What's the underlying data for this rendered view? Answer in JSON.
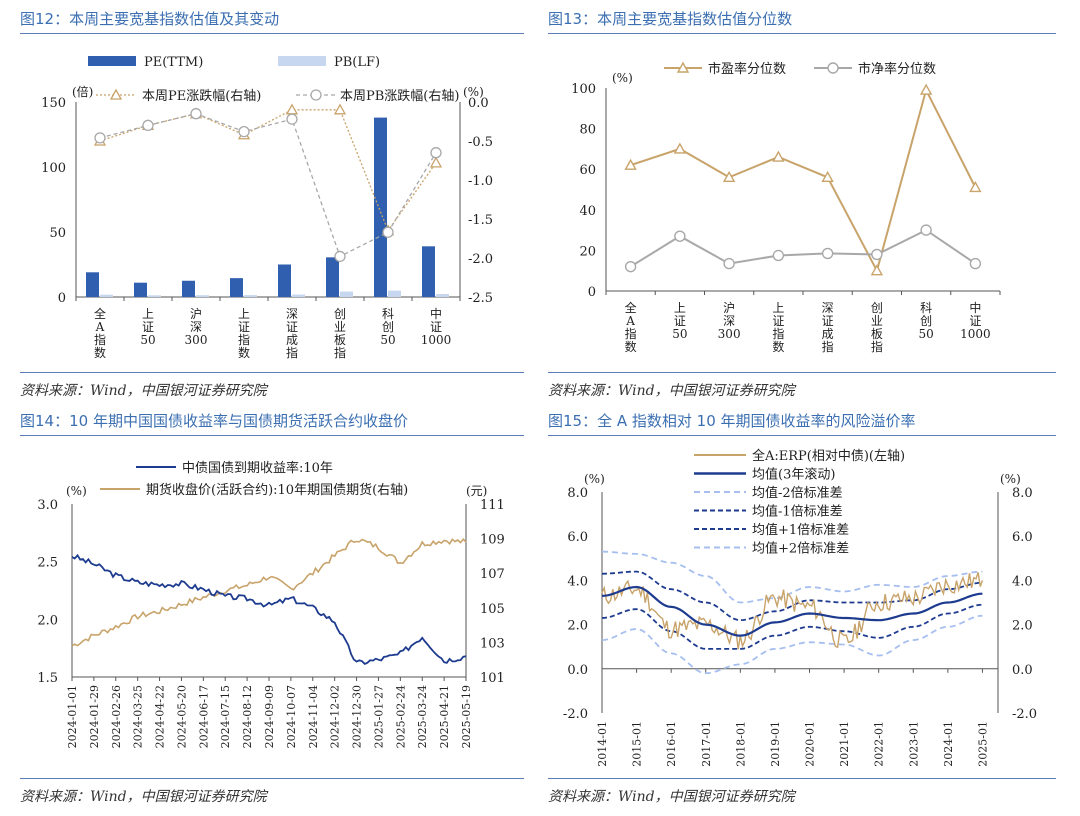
{
  "panels": {
    "p12": {
      "title": "图12：本周主要宽基指数估值及其变动",
      "source": "资料来源：Wind，中国银河证券研究院"
    },
    "p13": {
      "title": "图13：本周主要宽基指数估值分位数",
      "source": "资料来源：Wind，中国银河证券研究院"
    },
    "p14": {
      "title": "图14：10 年期中国国债收益率与国债期货活跃合约收盘价",
      "source": "资料来源：Wind，中国银河证券研究院"
    },
    "p15": {
      "title": "图15：全 A 指数相对 10 年期国债收益率的风险溢价率",
      "source": "资料来源：Wind，中国银河证券研究院"
    }
  },
  "colors": {
    "title_blue": "#3b6fb2",
    "bar_dark": "#2f5fae",
    "bar_light": "#c6d7ef",
    "tan": "#c8a36a",
    "grey": "#a8a8a8",
    "navy": "#1d3b8f",
    "light_dash": "#a7bff0",
    "red": "#e03030"
  },
  "chart_data": [
    {
      "id": "p12",
      "type": "bar",
      "categories": [
        "全A指数",
        "上证50",
        "沪深300",
        "上证指数",
        "深证成指",
        "创业板指",
        "科创50",
        "中证1000"
      ],
      "series": [
        {
          "name": "PE(TTM)",
          "type": "bar",
          "axis": "left",
          "values": [
            19,
            11,
            12.5,
            14.5,
            25,
            30.5,
            138,
            39
          ]
        },
        {
          "name": "PB(LF)",
          "type": "bar",
          "axis": "left",
          "values": [
            1.8,
            1.3,
            1.4,
            1.5,
            1.9,
            4.2,
            4.9,
            2.3
          ]
        },
        {
          "name": "本周PE涨跌幅(右轴)",
          "type": "line",
          "axis": "right",
          "values": [
            -0.5,
            -0.3,
            -0.15,
            -0.42,
            -0.1,
            -0.1,
            -1.65,
            -0.78
          ]
        },
        {
          "name": "本周PB涨跌幅(右轴)",
          "type": "line",
          "axis": "right",
          "values": [
            -0.46,
            -0.3,
            -0.15,
            -0.38,
            -0.22,
            -1.98,
            -1.67,
            -0.65
          ]
        }
      ],
      "ylim": [
        0,
        150
      ],
      "yticks": [
        "0",
        "50",
        "100",
        "150"
      ],
      "y2lim": [
        -2.5,
        0
      ],
      "y2ticks": [
        "-2.5",
        "-2.0",
        "-1.5",
        "-1.0",
        "-0.5",
        "0.0"
      ],
      "ylabel": "(倍)",
      "y2label": "(%)",
      "legend": "top"
    },
    {
      "id": "p13",
      "type": "line",
      "categories": [
        "全A指数",
        "上证50",
        "沪深300",
        "上证指数",
        "深证成指",
        "创业板指",
        "科创50",
        "中证1000"
      ],
      "series": [
        {
          "name": "市盈率分位数",
          "values": [
            62,
            70,
            56,
            66,
            56,
            10,
            99,
            51
          ]
        },
        {
          "name": "市净率分位数",
          "values": [
            12,
            27,
            13.5,
            17.5,
            18.5,
            18,
            30,
            13.5
          ]
        }
      ],
      "ylim": [
        0,
        100
      ],
      "yticks": [
        "0",
        "20",
        "40",
        "60",
        "80",
        "100"
      ],
      "ylabel": "(%)",
      "legend": "top"
    },
    {
      "id": "p14",
      "type": "line",
      "x": [
        "2024-01-01",
        "2024-01-29",
        "2024-02-26",
        "2024-03-25",
        "2024-04-22",
        "2024-05-20",
        "2024-06-17",
        "2024-07-15",
        "2024-08-12",
        "2024-09-09",
        "2024-10-07",
        "2024-11-04",
        "2024-12-02",
        "2024-12-30",
        "2025-01-27",
        "2025-02-24",
        "2025-03-24",
        "2025-04-21",
        "2025-05-19"
      ],
      "series": [
        {
          "name": "中债国债到期收益率:10年",
          "axis": "left",
          "values": [
            2.55,
            2.48,
            2.38,
            2.32,
            2.3,
            2.31,
            2.26,
            2.2,
            2.18,
            2.12,
            2.18,
            2.1,
            1.98,
            1.62,
            1.65,
            1.7,
            1.85,
            1.64,
            1.68
          ]
        },
        {
          "name": "期货收盘价(活跃合约):10年期国债期货(右轴)",
          "axis": "right",
          "values": [
            102.8,
            103.4,
            103.9,
            104.5,
            104.8,
            105.2,
            105.6,
            106.0,
            106.3,
            106.8,
            106.1,
            107.0,
            108.0,
            109.0,
            108.5,
            107.6,
            108.7,
            108.9,
            108.8
          ]
        }
      ],
      "ylim": [
        1.5,
        3.0
      ],
      "yticks": [
        "1.5",
        "2.0",
        "2.5",
        "3.0"
      ],
      "y2lim": [
        101,
        111
      ],
      "y2ticks": [
        "101",
        "103",
        "105",
        "107",
        "109",
        "111"
      ],
      "ylabel": "(%)",
      "y2label": "(元)",
      "legend": "top"
    },
    {
      "id": "p15",
      "type": "line",
      "x": [
        "2014-01",
        "2015-01",
        "2016-01",
        "2017-01",
        "2018-01",
        "2019-01",
        "2020-01",
        "2021-01",
        "2022-01",
        "2023-01",
        "2024-01",
        "2025-01"
      ],
      "series": [
        {
          "name": "全A:ERP(相对中债)(左轴)",
          "values": [
            3.3,
            3.6,
            1.8,
            2.0,
            1.3,
            3.2,
            2.8,
            1.2,
            3.0,
            3.2,
            3.8,
            4.0
          ]
        },
        {
          "name": "均值(3年滚动)",
          "values": [
            3.3,
            3.7,
            2.8,
            2.0,
            1.5,
            2.1,
            2.5,
            2.3,
            2.2,
            2.5,
            3.0,
            3.4
          ]
        },
        {
          "name": "均值-2倍标准差",
          "values": [
            1.3,
            1.8,
            0.7,
            -0.2,
            0.2,
            0.9,
            1.2,
            1.1,
            0.6,
            1.3,
            1.9,
            2.4
          ]
        },
        {
          "name": "均值-1倍标准差",
          "values": [
            2.3,
            2.7,
            1.7,
            0.9,
            0.9,
            1.5,
            1.9,
            1.7,
            1.4,
            1.9,
            2.5,
            2.9
          ]
        },
        {
          "name": "均值+1倍标准差",
          "values": [
            4.3,
            4.4,
            3.6,
            3.0,
            2.2,
            2.6,
            3.1,
            3.0,
            3.0,
            3.1,
            3.6,
            3.9
          ]
        },
        {
          "name": "均值+2倍标准差",
          "values": [
            5.3,
            5.2,
            4.8,
            4.2,
            3.0,
            3.2,
            3.7,
            3.5,
            3.8,
            3.7,
            4.2,
            4.4
          ]
        }
      ],
      "ylim": [
        -2.0,
        8.0
      ],
      "yticks": [
        "-2.0",
        "0.0",
        "2.0",
        "4.0",
        "6.0",
        "8.0"
      ],
      "y2ticks": [
        "-2.0",
        "0.0",
        "2.0",
        "4.0",
        "6.0",
        "8.0"
      ],
      "ylabel": "(%)",
      "y2label": "(%)",
      "legend": "top"
    }
  ]
}
